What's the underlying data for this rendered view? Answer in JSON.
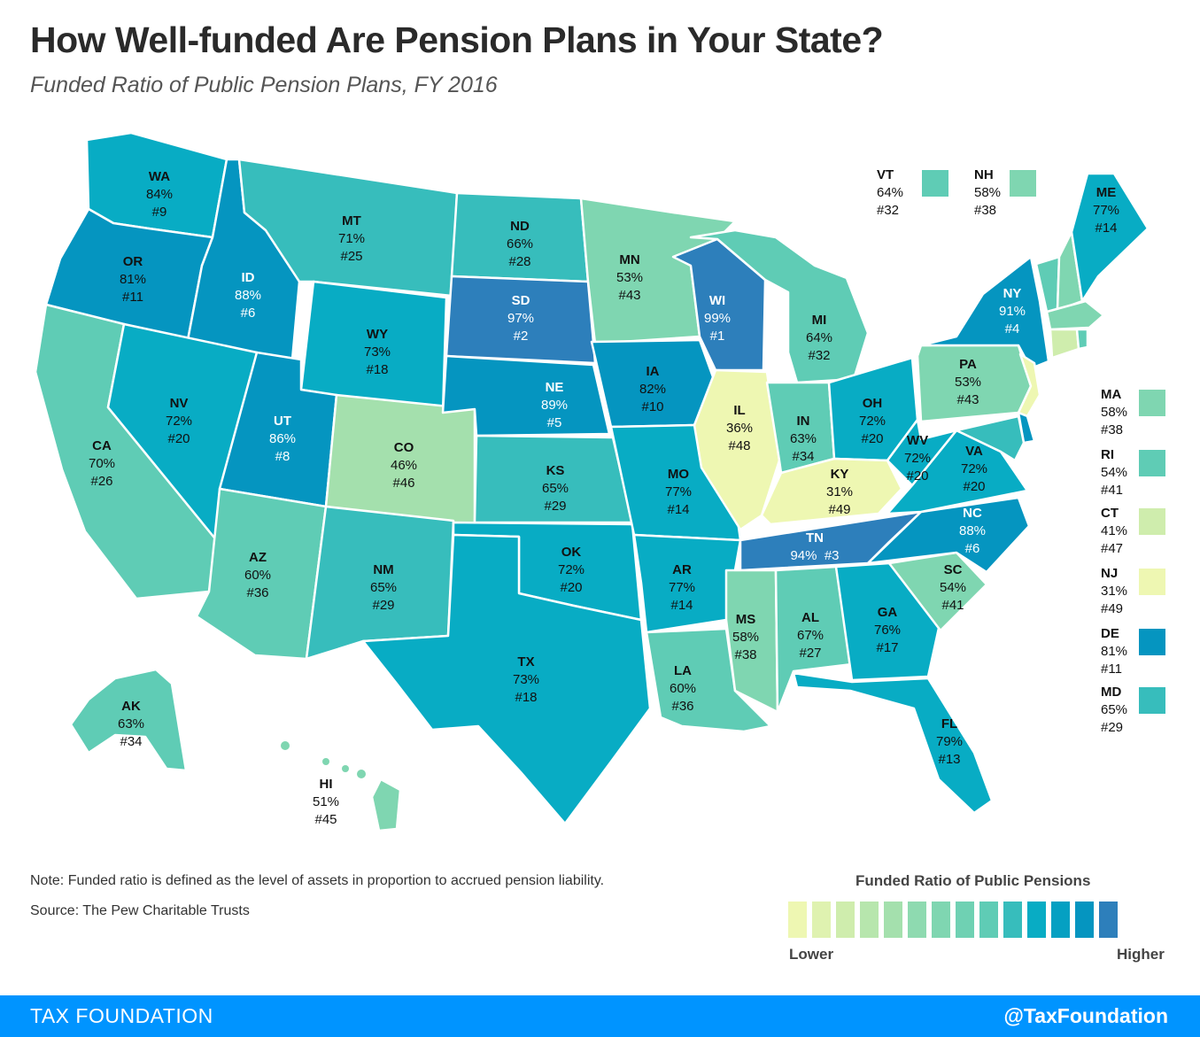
{
  "title": "How Well-funded Are Pension Plans in Your State?",
  "subtitle": "Funded Ratio of Public Pension Plans, FY 2016",
  "colors": {
    "c1": "#eef7b2",
    "c2": "#cfedad",
    "c3": "#a4e0ad",
    "c4": "#7fd6b1",
    "c5": "#5fccb5",
    "c6": "#37bdbc",
    "c7": "#08acc4",
    "c8": "#0595c0",
    "c9": "#2d7fbb",
    "footer": "#0094ff"
  },
  "states": {
    "WA": {
      "abbr": "WA",
      "ratio": "84%",
      "rank": "#9"
    },
    "OR": {
      "abbr": "OR",
      "ratio": "81%",
      "rank": "#11"
    },
    "CA": {
      "abbr": "CA",
      "ratio": "70%",
      "rank": "#26"
    },
    "ID": {
      "abbr": "ID",
      "ratio": "88%",
      "rank": "#6"
    },
    "NV": {
      "abbr": "NV",
      "ratio": "72%",
      "rank": "#20"
    },
    "MT": {
      "abbr": "MT",
      "ratio": "71%",
      "rank": "#25"
    },
    "WY": {
      "abbr": "WY",
      "ratio": "73%",
      "rank": "#18"
    },
    "UT": {
      "abbr": "UT",
      "ratio": "86%",
      "rank": "#8"
    },
    "AZ": {
      "abbr": "AZ",
      "ratio": "60%",
      "rank": "#36"
    },
    "CO": {
      "abbr": "CO",
      "ratio": "46%",
      "rank": "#46"
    },
    "NM": {
      "abbr": "NM",
      "ratio": "65%",
      "rank": "#29"
    },
    "ND": {
      "abbr": "ND",
      "ratio": "66%",
      "rank": "#28"
    },
    "SD": {
      "abbr": "SD",
      "ratio": "97%",
      "rank": "#2"
    },
    "NE": {
      "abbr": "NE",
      "ratio": "89%",
      "rank": "#5"
    },
    "KS": {
      "abbr": "KS",
      "ratio": "65%",
      "rank": "#29"
    },
    "OK": {
      "abbr": "OK",
      "ratio": "72%",
      "rank": "#20"
    },
    "TX": {
      "abbr": "TX",
      "ratio": "73%",
      "rank": "#18"
    },
    "MN": {
      "abbr": "MN",
      "ratio": "53%",
      "rank": "#43"
    },
    "IA": {
      "abbr": "IA",
      "ratio": "82%",
      "rank": "#10"
    },
    "MO": {
      "abbr": "MO",
      "ratio": "77%",
      "rank": "#14"
    },
    "AR": {
      "abbr": "AR",
      "ratio": "77%",
      "rank": "#14"
    },
    "LA": {
      "abbr": "LA",
      "ratio": "60%",
      "rank": "#36"
    },
    "WI": {
      "abbr": "WI",
      "ratio": "99%",
      "rank": "#1"
    },
    "IL": {
      "abbr": "IL",
      "ratio": "36%",
      "rank": "#48"
    },
    "MI": {
      "abbr": "MI",
      "ratio": "64%",
      "rank": "#32"
    },
    "IN": {
      "abbr": "IN",
      "ratio": "63%",
      "rank": "#34"
    },
    "OH": {
      "abbr": "OH",
      "ratio": "72%",
      "rank": "#20"
    },
    "KY": {
      "abbr": "KY",
      "ratio": "31%",
      "rank": "#49"
    },
    "TN": {
      "abbr": "TN",
      "ratio": "94%",
      "rank": "#3"
    },
    "MS": {
      "abbr": "MS",
      "ratio": "58%",
      "rank": "#38"
    },
    "AL": {
      "abbr": "AL",
      "ratio": "67%",
      "rank": "#27"
    },
    "GA": {
      "abbr": "GA",
      "ratio": "76%",
      "rank": "#17"
    },
    "FL": {
      "abbr": "FL",
      "ratio": "79%",
      "rank": "#13"
    },
    "SC": {
      "abbr": "SC",
      "ratio": "54%",
      "rank": "#41"
    },
    "NC": {
      "abbr": "NC",
      "ratio": "88%",
      "rank": "#6"
    },
    "VA": {
      "abbr": "VA",
      "ratio": "72%",
      "rank": "#20"
    },
    "WV": {
      "abbr": "WV",
      "ratio": "72%",
      "rank": "#20"
    },
    "PA": {
      "abbr": "PA",
      "ratio": "53%",
      "rank": "#43"
    },
    "NY": {
      "abbr": "NY",
      "ratio": "91%",
      "rank": "#4"
    },
    "ME": {
      "abbr": "ME",
      "ratio": "77%",
      "rank": "#14"
    },
    "AK": {
      "abbr": "AK",
      "ratio": "63%",
      "rank": "#34"
    },
    "HI": {
      "abbr": "HI",
      "ratio": "51%",
      "rank": "#45"
    }
  },
  "side_states": {
    "VT": {
      "abbr": "VT",
      "ratio": "64%",
      "rank": "#32"
    },
    "NH": {
      "abbr": "NH",
      "ratio": "58%",
      "rank": "#38"
    },
    "MA": {
      "abbr": "MA",
      "ratio": "58%",
      "rank": "#38"
    },
    "RI": {
      "abbr": "RI",
      "ratio": "54%",
      "rank": "#41"
    },
    "CT": {
      "abbr": "CT",
      "ratio": "41%",
      "rank": "#47"
    },
    "NJ": {
      "abbr": "NJ",
      "ratio": "31%",
      "rank": "#49"
    },
    "DE": {
      "abbr": "DE",
      "ratio": "81%",
      "rank": "#11"
    },
    "MD": {
      "abbr": "MD",
      "ratio": "65%",
      "rank": "#29"
    }
  },
  "note": "Note: Funded ratio is defined as the level of assets in proportion to accrued pension liability.",
  "source": "Source: The Pew Charitable Trusts",
  "legend": {
    "title": "Funded Ratio of Public Pensions",
    "low": "Lower",
    "high": "Higher"
  },
  "footer": {
    "left": "TAX FOUNDATION",
    "right": "@TaxFoundation"
  }
}
